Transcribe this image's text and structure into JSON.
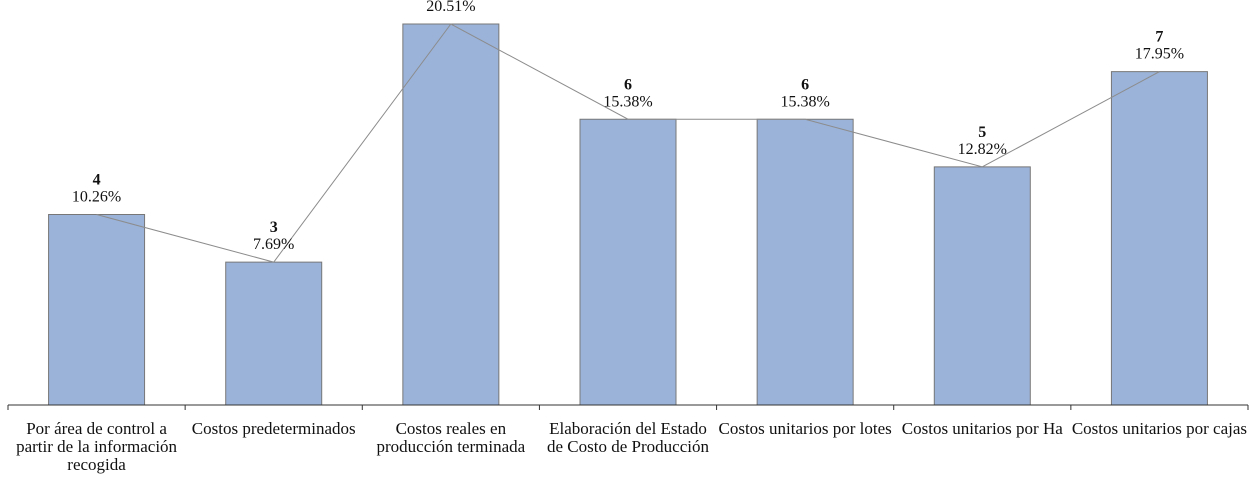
{
  "chart_data": {
    "type": "bar",
    "categories": [
      "Por área de control a partir de la información recogida",
      "Costos predeterminados",
      "Costos reales en producción terminada",
      "Elaboración del Estado de Costo de Producción",
      "Costos unitarios por lotes",
      "Costos unitarios por Ha",
      "Costos unitarios por cajas"
    ],
    "values": [
      4,
      3,
      8,
      6,
      6,
      5,
      7
    ],
    "percentages": [
      10.26,
      7.69,
      20.51,
      15.38,
      15.38,
      12.82,
      17.95
    ],
    "percentage_labels": [
      "10.26%",
      "7.69%",
      "20.51%",
      "15.38%",
      "15.38%",
      "12.82%",
      "17.95%"
    ],
    "color": "#9bb3d9",
    "line_color": "#8c8c8c"
  }
}
